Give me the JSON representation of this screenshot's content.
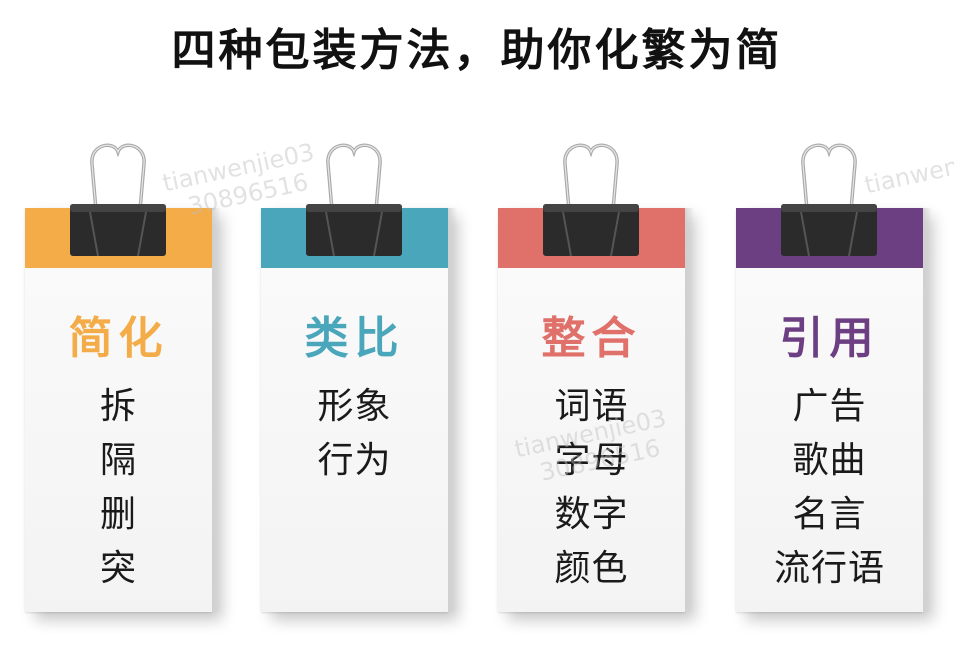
{
  "title": "四种包装方法，助你化繁为简",
  "cards": [
    {
      "heading": "简化",
      "color": "#f3ac48",
      "items": [
        "拆",
        "隔",
        "删",
        "突"
      ]
    },
    {
      "heading": "类比",
      "color": "#4aa6ba",
      "items": [
        "形象",
        "行为"
      ]
    },
    {
      "heading": "整合",
      "color": "#e0706a",
      "items": [
        "词语",
        "字母",
        "数字",
        "颜色"
      ]
    },
    {
      "heading": "引用",
      "color": "#6c3f83",
      "items": [
        "广告",
        "歌曲",
        "名言",
        "流行语"
      ]
    }
  ],
  "watermark": {
    "line1": "tianwenjie03",
    "line2": "30896516",
    "partial": "tianwen"
  }
}
